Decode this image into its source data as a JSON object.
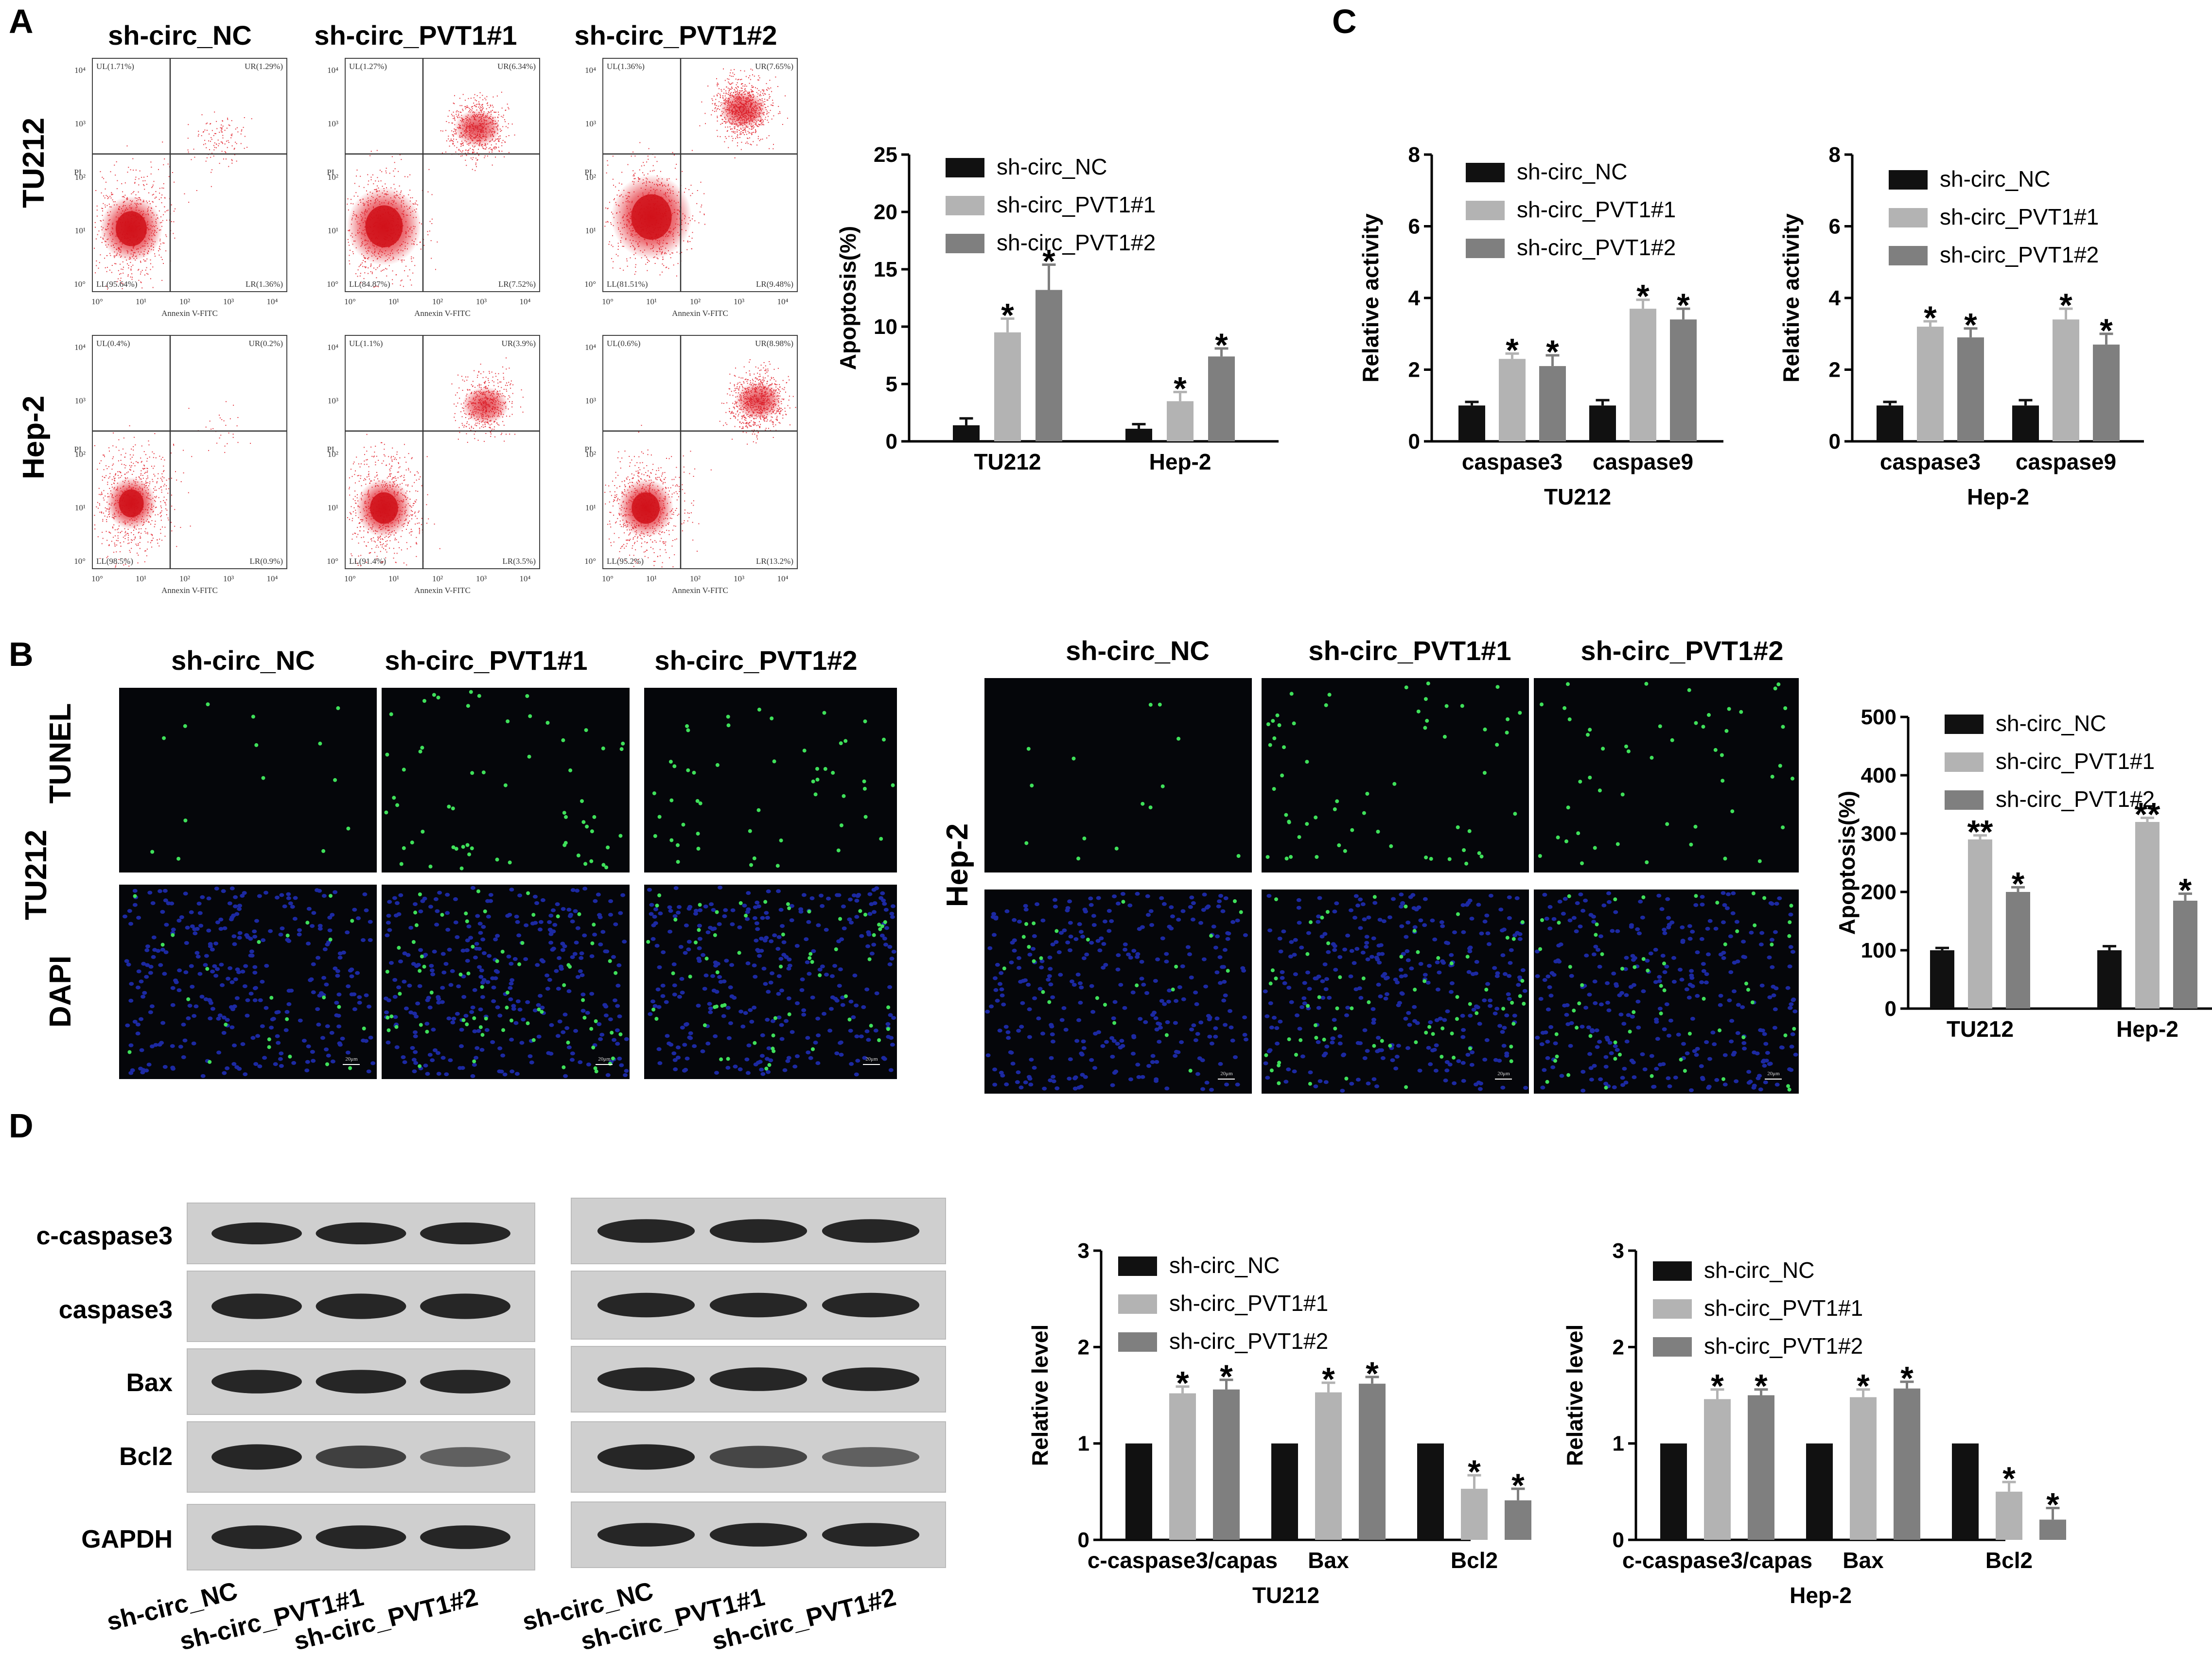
{
  "panels": {
    "A": "A",
    "B": "B",
    "C": "C",
    "D": "D"
  },
  "groups": [
    "sh-circ_NC",
    "sh-circ_PVT1#1",
    "sh-circ_PVT1#2"
  ],
  "colors": {
    "NC": "#111111",
    "PVT1_1": "#b3b3b3",
    "PVT1_2": "#7f7f7f",
    "flow_dots": "#e01822",
    "tunel": "#3fe05a",
    "dapi": "#2232c8"
  },
  "flow": {
    "rows": [
      "TU212",
      "Hep-2"
    ],
    "x_axis_label": "Annexin V-FITC",
    "y_axis_label": "PI",
    "decades": [
      "10°",
      "10¹",
      "10²",
      "10³",
      "10⁴"
    ],
    "quadrants": [
      [
        {
          "UL": "UL(1.71%)",
          "UR": "UR(1.29%)",
          "LL": "LL(95.64%)",
          "LR": "LR(1.36%)"
        },
        {
          "UL": "UL(1.27%)",
          "UR": "UR(6.34%)",
          "LL": "LL(84.87%)",
          "LR": "LR(7.52%)"
        },
        {
          "UL": "UL(1.36%)",
          "UR": "UR(7.65%)",
          "LL": "LL(81.51%)",
          "LR": "LR(9.48%)"
        }
      ],
      [
        {
          "UL": "UL(0.4%)",
          "UR": "UR(0.2%)",
          "LL": "LL(98.5%)",
          "LR": "LR(0.9%)"
        },
        {
          "UL": "UL(1.1%)",
          "UR": "UR(3.9%)",
          "LL": "LL(91.4%)",
          "LR": "LR(3.5%)"
        },
        {
          "UL": "UL(0.6%)",
          "UR": "UR(8.98%)",
          "LL": "LL(95.2%)",
          "LR": "LR(13.2%)"
        }
      ]
    ]
  },
  "tunel": {
    "stain_rows": [
      "TUNEL",
      "DAPI"
    ],
    "cell_lines": [
      "TU212",
      "Hep-2"
    ],
    "scale_label": "20μm"
  },
  "western": {
    "bands": [
      "c-caspase3",
      "caspase3",
      "Bax",
      "Bcl2",
      "GAPDH"
    ]
  },
  "chart_data": [
    {
      "id": "A-apoptosis",
      "type": "bar",
      "categories": [
        "TU212",
        "Hep-2"
      ],
      "series": [
        {
          "name": "sh-circ_NC",
          "values": [
            1.4,
            1.1
          ],
          "errors": [
            0.6,
            0.4
          ],
          "sig": [
            "",
            ""
          ]
        },
        {
          "name": "sh-circ_PVT1#1",
          "values": [
            9.5,
            3.5
          ],
          "errors": [
            1.2,
            0.8
          ],
          "sig": [
            "*",
            "*"
          ]
        },
        {
          "name": "sh-circ_PVT1#2",
          "values": [
            13.2,
            7.4
          ],
          "errors": [
            2.2,
            0.7
          ],
          "sig": [
            "*",
            "*"
          ]
        }
      ],
      "ylabel": "Apoptosis(%)",
      "xlabel": "",
      "ylim": [
        0,
        25
      ],
      "yticks": [
        0,
        5,
        10,
        15,
        20,
        25
      ],
      "legend": "top-right"
    },
    {
      "id": "C-TU212",
      "type": "bar",
      "categories": [
        "caspase3",
        "caspase9"
      ],
      "series": [
        {
          "name": "sh-circ_NC",
          "values": [
            1.0,
            1.0
          ],
          "errors": [
            0.1,
            0.15
          ],
          "sig": [
            "",
            ""
          ]
        },
        {
          "name": "sh-circ_PVT1#1",
          "values": [
            2.3,
            3.7
          ],
          "errors": [
            0.15,
            0.25
          ],
          "sig": [
            "*",
            "*"
          ]
        },
        {
          "name": "sh-circ_PVT1#2",
          "values": [
            2.1,
            3.4
          ],
          "errors": [
            0.3,
            0.3
          ],
          "sig": [
            "*",
            "*"
          ]
        }
      ],
      "ylabel": "Relative activity",
      "xlabel": "TU212",
      "ylim": [
        0,
        8
      ],
      "yticks": [
        0,
        2,
        4,
        6,
        8
      ],
      "legend": "top-left"
    },
    {
      "id": "C-Hep2",
      "type": "bar",
      "categories": [
        "caspase3",
        "caspase9"
      ],
      "series": [
        {
          "name": "sh-circ_NC",
          "values": [
            1.0,
            1.0
          ],
          "errors": [
            0.1,
            0.15
          ],
          "sig": [
            "",
            ""
          ]
        },
        {
          "name": "sh-circ_PVT1#1",
          "values": [
            3.2,
            3.4
          ],
          "errors": [
            0.15,
            0.3
          ],
          "sig": [
            "*",
            "*"
          ]
        },
        {
          "name": "sh-circ_PVT1#2",
          "values": [
            2.9,
            2.7
          ],
          "errors": [
            0.25,
            0.3
          ],
          "sig": [
            "*",
            "*"
          ]
        }
      ],
      "ylabel": "Relative activity",
      "xlabel": "Hep-2",
      "ylim": [
        0,
        8
      ],
      "yticks": [
        0,
        2,
        4,
        6,
        8
      ],
      "legend": "top-left"
    },
    {
      "id": "B-apoptosis",
      "type": "bar",
      "categories": [
        "TU212",
        "Hep-2"
      ],
      "series": [
        {
          "name": "sh-circ_NC",
          "values": [
            100,
            100
          ],
          "errors": [
            4,
            7
          ],
          "sig": [
            "",
            ""
          ]
        },
        {
          "name": "sh-circ_PVT1#1",
          "values": [
            290,
            320
          ],
          "errors": [
            7,
            7
          ],
          "sig": [
            "**",
            "**"
          ]
        },
        {
          "name": "sh-circ_PVT1#2",
          "values": [
            200,
            185
          ],
          "errors": [
            8,
            12
          ],
          "sig": [
            "*",
            "*"
          ]
        }
      ],
      "ylabel": "Apoptosis(%)",
      "xlabel": "",
      "ylim": [
        0,
        500
      ],
      "yticks": [
        0,
        100,
        200,
        300,
        400,
        500
      ],
      "legend": "top-right"
    },
    {
      "id": "D-TU212",
      "type": "bar",
      "categories": [
        "c-caspase3/capas",
        "Bax",
        "Bcl2"
      ],
      "series": [
        {
          "name": "sh-circ_NC",
          "values": [
            1.0,
            1.0,
            1.0
          ],
          "errors": [
            0,
            0,
            0
          ],
          "sig": [
            "",
            "",
            ""
          ]
        },
        {
          "name": "sh-circ_PVT1#1",
          "values": [
            1.52,
            1.53,
            0.53
          ],
          "errors": [
            0.07,
            0.1,
            0.14
          ],
          "sig": [
            "*",
            "*",
            "*"
          ]
        },
        {
          "name": "sh-circ_PVT1#2",
          "values": [
            1.56,
            1.62,
            0.41
          ],
          "errors": [
            0.1,
            0.07,
            0.12
          ],
          "sig": [
            "*",
            "*",
            "*"
          ]
        }
      ],
      "ylabel": "Relative level",
      "xlabel": "TU212",
      "ylim": [
        0,
        3
      ],
      "yticks": [
        0,
        1,
        2,
        3
      ],
      "legend": "top-left"
    },
    {
      "id": "D-Hep2",
      "type": "bar",
      "categories": [
        "c-caspase3/capas",
        "Bax",
        "Bcl2"
      ],
      "series": [
        {
          "name": "sh-circ_NC",
          "values": [
            1.0,
            1.0,
            1.0
          ],
          "errors": [
            0,
            0,
            0
          ],
          "sig": [
            "",
            "",
            ""
          ]
        },
        {
          "name": "sh-circ_PVT1#1",
          "values": [
            1.46,
            1.48,
            0.5
          ],
          "errors": [
            0.1,
            0.08,
            0.1
          ],
          "sig": [
            "*",
            "*",
            "*"
          ]
        },
        {
          "name": "sh-circ_PVT1#2",
          "values": [
            1.5,
            1.57,
            0.21
          ],
          "errors": [
            0.06,
            0.07,
            0.12
          ],
          "sig": [
            "*",
            "*",
            "*"
          ]
        }
      ],
      "ylabel": "Relative level",
      "xlabel": "Hep-2",
      "ylim": [
        0,
        3
      ],
      "yticks": [
        0,
        1,
        2,
        3
      ],
      "legend": "top-left"
    }
  ]
}
